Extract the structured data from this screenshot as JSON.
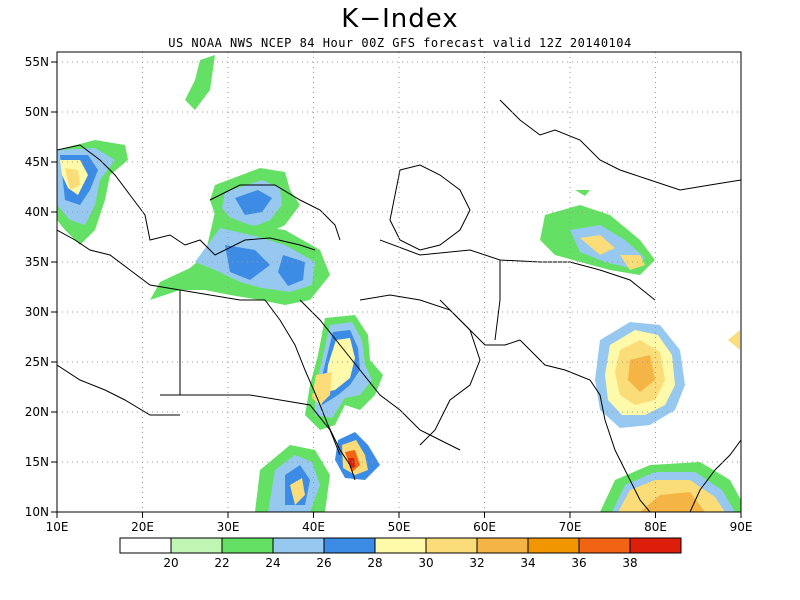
{
  "title": "K−Index",
  "subtitle": "US NOAA NWS NCEP 84 Hour 00Z GFS forecast valid 12Z 20140104",
  "map": {
    "lon_range": [
      10,
      90
    ],
    "lat_range": [
      10,
      56
    ],
    "lon_ticks": [
      "10E",
      "20E",
      "30E",
      "40E",
      "50E",
      "60E",
      "70E",
      "80E",
      "90E"
    ],
    "lat_ticks": [
      "10N",
      "15N",
      "20N",
      "25N",
      "30N",
      "35N",
      "40N",
      "45N",
      "50N",
      "55N"
    ],
    "grid": true
  },
  "legend": {
    "labels": [
      "20",
      "22",
      "24",
      "26",
      "28",
      "30",
      "32",
      "34",
      "36",
      "38"
    ],
    "colors": [
      "#ffffff",
      "#c0f5b4",
      "#64e164",
      "#96c8f0",
      "#3c8ce6",
      "#fffaaa",
      "#fadc78",
      "#f5b446",
      "#f09600",
      "#f06414",
      "#dc1e0a"
    ]
  }
}
